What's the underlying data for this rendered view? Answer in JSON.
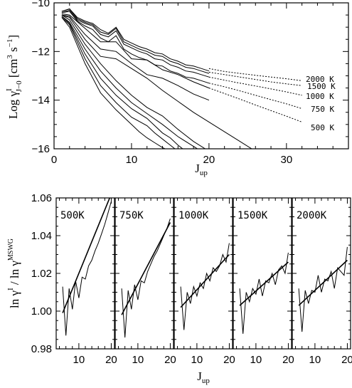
{
  "chart_data": [
    {
      "type": "line",
      "xlim": [
        0,
        38
      ],
      "ylim": [
        -16,
        -10
      ],
      "x_ticks": [
        0,
        10,
        20,
        30
      ],
      "y_ticks": [
        -16,
        -14,
        -12,
        -10
      ],
      "xlabel": {
        "base": "J",
        "sub": "up"
      },
      "ylabel": {
        "pre": "Log γ",
        "sup": "I",
        "sub": "J−0",
        "units": "[cm",
        "units_sup1": "3",
        "units_mid": " s",
        "units_sup2": "−1",
        "units_end": "]"
      },
      "temperature_labels": [
        "2000 K",
        "1500 K",
        "1000 K",
        "750 K",
        "500 K"
      ],
      "series": [
        {
          "style": "solid",
          "x": [
            1,
            2,
            3,
            4,
            5,
            6,
            7,
            8,
            9,
            10,
            11,
            12,
            13,
            14,
            15,
            16,
            17,
            18,
            19,
            20
          ],
          "y": [
            -10.35,
            -10.25,
            -10.6,
            -10.75,
            -10.85,
            -11.1,
            -11.25,
            -11.0,
            -11.5,
            -11.65,
            -11.8,
            -11.9,
            -12.05,
            -12.1,
            -12.3,
            -12.4,
            -12.55,
            -12.6,
            -12.7,
            -12.8
          ]
        },
        {
          "style": "solid",
          "x": [
            1,
            2,
            3,
            4,
            5,
            6,
            7,
            8,
            9,
            10,
            11,
            12,
            13,
            14,
            15,
            16,
            17,
            18,
            19,
            20
          ],
          "y": [
            -10.35,
            -10.25,
            -10.65,
            -10.8,
            -10.9,
            -11.2,
            -11.3,
            -11.05,
            -11.6,
            -11.75,
            -11.9,
            -12.0,
            -12.15,
            -12.2,
            -12.4,
            -12.5,
            -12.65,
            -12.7,
            -12.8,
            -12.9
          ]
        },
        {
          "style": "solid",
          "x": [
            1,
            2,
            3,
            4,
            5,
            6,
            7,
            8,
            9,
            10,
            11,
            12,
            13,
            14,
            15,
            16,
            17,
            18,
            19,
            20
          ],
          "y": [
            -10.4,
            -10.3,
            -10.7,
            -10.85,
            -10.95,
            -11.3,
            -11.4,
            -11.15,
            -11.7,
            -11.85,
            -12.0,
            -12.1,
            -12.3,
            -12.35,
            -12.55,
            -12.65,
            -12.8,
            -12.85,
            -12.95,
            -13.05
          ]
        },
        {
          "style": "solid",
          "x": [
            1,
            2,
            3,
            4,
            5,
            6,
            7,
            8,
            9,
            10,
            11,
            12,
            13,
            14,
            15,
            16,
            17,
            18,
            19,
            20
          ],
          "y": [
            -10.4,
            -10.35,
            -10.75,
            -10.95,
            -11.1,
            -11.45,
            -11.6,
            -11.35,
            -11.9,
            -12.1,
            -12.25,
            -12.35,
            -12.55,
            -12.6,
            -12.8,
            -12.9,
            -13.05,
            -13.1,
            -13.2,
            -13.3
          ]
        },
        {
          "style": "solid",
          "x": [
            1,
            2,
            4,
            6,
            8,
            10,
            12,
            14,
            16,
            18,
            20
          ],
          "y": [
            -10.45,
            -10.5,
            -11.05,
            -11.6,
            -11.6,
            -12.3,
            -12.35,
            -12.75,
            -12.95,
            -13.25,
            -13.5
          ]
        },
        {
          "style": "solid",
          "x": [
            1,
            2,
            4,
            6,
            8,
            10,
            12,
            14,
            16,
            18,
            20
          ],
          "y": [
            -10.5,
            -10.55,
            -11.3,
            -11.9,
            -12.0,
            -12.5,
            -12.95,
            -13.1,
            -13.4,
            -13.75,
            -14.0
          ]
        },
        {
          "style": "solid",
          "x": [
            1,
            2,
            4,
            6,
            8,
            10,
            12,
            14,
            16,
            18,
            20,
            22,
            24,
            26
          ],
          "y": [
            -10.5,
            -10.6,
            -11.5,
            -12.2,
            -12.3,
            -12.7,
            -13.1,
            -13.6,
            -14.05,
            -14.5,
            -14.9,
            -15.3,
            -15.7,
            -16.1
          ]
        },
        {
          "style": "solid",
          "x": [
            1,
            2,
            4,
            6,
            8,
            10,
            12,
            14,
            16,
            18,
            20
          ],
          "y": [
            -10.5,
            -10.7,
            -11.7,
            -12.5,
            -13.2,
            -13.8,
            -14.3,
            -14.65,
            -15.2,
            -15.7,
            -16.1
          ]
        },
        {
          "style": "solid",
          "x": [
            1,
            2,
            4,
            6,
            8,
            10,
            12,
            14,
            16,
            18,
            19
          ],
          "y": [
            -10.55,
            -10.8,
            -11.9,
            -12.8,
            -13.5,
            -14.1,
            -14.55,
            -15.0,
            -15.5,
            -15.9,
            -16.1
          ]
        },
        {
          "style": "solid",
          "x": [
            1,
            2,
            4,
            6,
            8,
            10,
            12,
            14,
            15,
            16,
            17
          ],
          "y": [
            -10.55,
            -10.85,
            -12.1,
            -13.1,
            -13.8,
            -14.35,
            -14.75,
            -15.35,
            -15.55,
            -15.85,
            -16.1
          ]
        },
        {
          "style": "solid",
          "x": [
            1,
            2,
            4,
            6,
            8,
            10,
            12,
            13,
            14,
            15,
            16
          ],
          "y": [
            -10.6,
            -10.9,
            -12.3,
            -13.4,
            -14.1,
            -14.7,
            -15.05,
            -15.35,
            -15.6,
            -15.85,
            -16.1
          ]
        },
        {
          "style": "solid",
          "x": [
            1,
            2,
            4,
            6,
            8,
            10,
            11,
            12,
            13,
            14,
            15
          ],
          "y": [
            -10.6,
            -11.0,
            -12.5,
            -13.7,
            -14.4,
            -15.0,
            -15.3,
            -15.55,
            -15.75,
            -15.95,
            -16.1
          ]
        },
        {
          "style": "dotted",
          "x": [
            20,
            22,
            24,
            26,
            28,
            30,
            32
          ],
          "y": [
            -12.7,
            -12.82,
            -12.9,
            -12.98,
            -13.05,
            -13.12,
            -13.2
          ]
        },
        {
          "style": "dotted",
          "x": [
            20,
            22,
            24,
            26,
            28,
            30,
            32
          ],
          "y": [
            -12.85,
            -12.95,
            -13.05,
            -13.15,
            -13.25,
            -13.33,
            -13.4
          ]
        },
        {
          "style": "dotted",
          "x": [
            20,
            22,
            24,
            26,
            28,
            30,
            32
          ],
          "y": [
            -13.05,
            -13.18,
            -13.3,
            -13.42,
            -13.54,
            -13.66,
            -13.8
          ]
        },
        {
          "style": "dotted",
          "x": [
            20,
            22,
            24,
            26,
            28,
            30,
            32
          ],
          "y": [
            -13.3,
            -13.45,
            -13.62,
            -13.8,
            -13.98,
            -14.15,
            -14.35
          ]
        },
        {
          "style": "dotted",
          "x": [
            20,
            22,
            24,
            26,
            28,
            30,
            32
          ],
          "y": [
            -13.5,
            -13.73,
            -13.96,
            -14.2,
            -14.43,
            -14.66,
            -14.9
          ]
        }
      ]
    },
    {
      "type": "line",
      "xlim": [
        3,
        21
      ],
      "ylim": [
        0.98,
        1.06
      ],
      "x_ticks": [
        10,
        20
      ],
      "y_ticks": [
        0.98,
        1.0,
        1.02,
        1.04,
        1.06
      ],
      "y_tick_labels": [
        "0.98",
        "1.00",
        "1.02",
        "1.04",
        "1.06"
      ],
      "xlabel": {
        "base": "J",
        "sub": "up"
      },
      "ylabel": {
        "a": "ln γ",
        "a_sup": "I",
        "b": " / ln γ",
        "b_sup": "MSWG"
      },
      "panels": [
        {
          "label": "500K",
          "data": {
            "x": [
              5,
              6,
              7,
              8,
              9,
              10,
              11,
              12,
              13,
              14,
              15,
              16,
              17,
              18,
              19,
              20
            ],
            "y": [
              1.013,
              0.987,
              1.012,
              1.001,
              1.016,
              1.007,
              1.018,
              1.017,
              1.024,
              1.027,
              1.032,
              1.036,
              1.041,
              1.046,
              1.052,
              1.058
            ]
          },
          "fit": {
            "x": [
              5,
              20
            ],
            "y": [
              0.999,
              1.062
            ]
          }
        },
        {
          "label": "750K",
          "data": {
            "x": [
              5,
              6,
              7,
              8,
              9,
              10,
              11,
              12,
              13,
              14,
              15,
              16,
              17,
              18,
              19,
              20
            ],
            "y": [
              1.012,
              0.986,
              1.011,
              1.001,
              1.014,
              1.006,
              1.016,
              1.015,
              1.021,
              1.025,
              1.029,
              1.032,
              1.036,
              1.04,
              1.044,
              1.049
            ]
          },
          "fit": {
            "x": [
              5,
              20
            ],
            "y": [
              0.998,
              1.047
            ]
          }
        },
        {
          "label": "1000K",
          "data": {
            "x": [
              5,
              6,
              7,
              8,
              9,
              10,
              11,
              12,
              13,
              14,
              15,
              16,
              17,
              18,
              19,
              20
            ],
            "y": [
              1.013,
              0.99,
              1.01,
              1.004,
              1.013,
              1.008,
              1.015,
              1.012,
              1.02,
              1.016,
              1.023,
              1.021,
              1.024,
              1.03,
              1.026,
              1.036
            ]
          },
          "fit": {
            "x": [
              5,
              20
            ],
            "y": [
              1.002,
              1.03
            ]
          }
        },
        {
          "label": "1500K",
          "data": {
            "x": [
              5,
              6,
              7,
              8,
              9,
              10,
              11,
              12,
              13,
              14,
              15,
              16,
              17,
              18,
              19,
              20
            ],
            "y": [
              1.012,
              0.988,
              1.01,
              1.005,
              1.012,
              1.009,
              1.017,
              1.008,
              1.016,
              1.015,
              1.02,
              1.014,
              1.022,
              1.024,
              1.02,
              1.031
            ]
          },
          "fit": {
            "x": [
              5,
              20
            ],
            "y": [
              1.003,
              1.026
            ]
          }
        },
        {
          "label": "2000K",
          "data": {
            "x": [
              5,
              6,
              7,
              8,
              9,
              10,
              11,
              12,
              13,
              14,
              15,
              16,
              17,
              18,
              19,
              20
            ],
            "y": [
              1.012,
              0.989,
              1.011,
              1.004,
              1.011,
              1.01,
              1.019,
              1.01,
              1.017,
              1.016,
              1.021,
              1.012,
              1.023,
              1.021,
              1.019,
              1.034
            ]
          },
          "fit": {
            "x": [
              5,
              20
            ],
            "y": [
              1.003,
              1.027
            ]
          }
        }
      ]
    }
  ]
}
